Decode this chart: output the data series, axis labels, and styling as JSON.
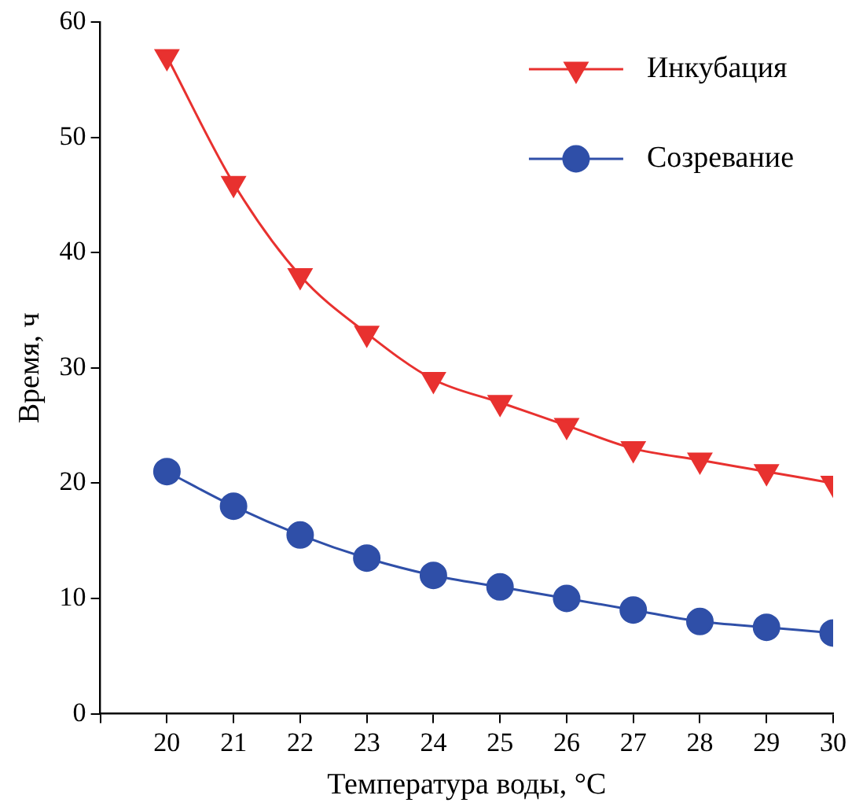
{
  "chart_data": {
    "type": "line",
    "xlabel": "Температура воды, °C",
    "ylabel": "Время, ч",
    "x": [
      20,
      21,
      22,
      23,
      24,
      25,
      26,
      27,
      28,
      29,
      30
    ],
    "xlim": [
      19,
      30
    ],
    "xticks": [
      {
        "value": 19,
        "label": null
      },
      20,
      21,
      22,
      23,
      24,
      25,
      26,
      27,
      28,
      29,
      30
    ],
    "ylim": [
      0,
      60
    ],
    "yticks": [
      0,
      10,
      20,
      30,
      40,
      50,
      60
    ],
    "grid": false,
    "legend": "top right",
    "line_style": "solid",
    "series": [
      {
        "name": "Инкубация",
        "color": "#e8312f",
        "marker": "triangle",
        "values": [
          57,
          46,
          38,
          33,
          29,
          27,
          25,
          23,
          22,
          21,
          20
        ]
      },
      {
        "name": "Созревание",
        "color": "#2f4fa8",
        "marker": "circle",
        "values": [
          21,
          18,
          15.5,
          13.5,
          12,
          11,
          10,
          9,
          8,
          7.5,
          7
        ]
      }
    ]
  }
}
